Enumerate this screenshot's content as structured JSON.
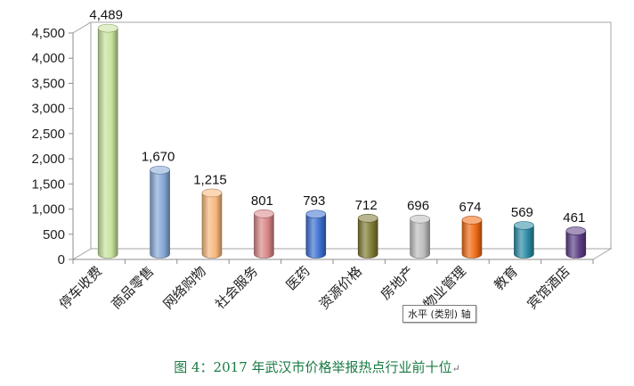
{
  "chart_data": {
    "type": "bar",
    "categories": [
      "停车收费",
      "商品零售",
      "网络购物",
      "社会服务",
      "医药",
      "资源价格",
      "房地产",
      "物业管理",
      "教育",
      "宾馆酒店"
    ],
    "values": [
      4489,
      1670,
      1215,
      801,
      793,
      712,
      696,
      674,
      569,
      461
    ],
    "value_labels": [
      "4,489",
      "1,670",
      "1,215",
      "801",
      "793",
      "712",
      "696",
      "674",
      "569",
      "461"
    ],
    "yticks": [
      "0",
      "500",
      "1,000",
      "1,500",
      "2,000",
      "2,500",
      "3,000",
      "3,500",
      "4,000",
      "4,500"
    ],
    "ylim": [
      0,
      4500
    ],
    "grid": true,
    "bar_colors": [
      "#c6e29a",
      "#86a7d6",
      "#f7b77a",
      "#d88585",
      "#3c6fd0",
      "#7e7a33",
      "#bdbdbd",
      "#f06a14",
      "#2a8aa4",
      "#5b3c84"
    ]
  },
  "caption": "图 4：2017 年武汉市价格举报热点行业前十位",
  "tooltip": "水平 (类别) 轴"
}
